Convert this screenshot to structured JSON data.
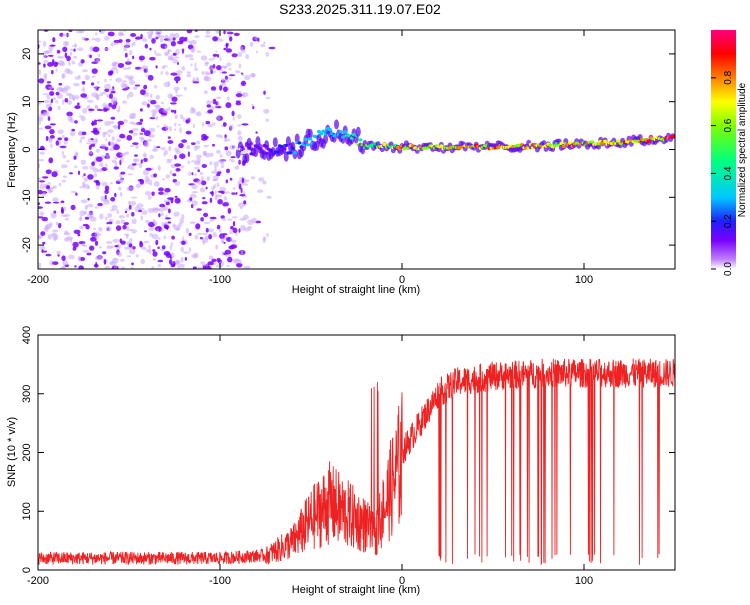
{
  "figure_title": "S233.2025.311.19.07.E02",
  "chart_data": [
    {
      "type": "heatmap",
      "name": "spectrogram",
      "xlabel": "Height of straight line (km)",
      "ylabel": "Frequency (Hz)",
      "xlim": [
        -200,
        150
      ],
      "ylim": [
        -25,
        25
      ],
      "x_ticks": [
        -200,
        -100,
        0,
        100
      ],
      "y_ticks": [
        -20,
        -10,
        0,
        10,
        20
      ],
      "colorbar": {
        "label": "Normalized spectral amplitude",
        "range": [
          0,
          1
        ],
        "ticks": [
          0.0,
          0.2,
          0.4,
          0.6,
          0.8
        ],
        "colormap": [
          "#e8e0f8",
          "#7a00ff",
          "#2020ff",
          "#00e0ff",
          "#00ff60",
          "#a0ff00",
          "#ffff00",
          "#ff8000",
          "#ff0000",
          "#ff0080"
        ]
      },
      "ridge": {
        "description_x": [
          -90,
          -60,
          -45,
          -35,
          -20,
          0,
          40,
          80,
          120,
          150
        ],
        "freq_hz": [
          0,
          0,
          3,
          4,
          1,
          0.5,
          0.5,
          0.8,
          1.5,
          2.5
        ],
        "amplitude": [
          0.1,
          0.3,
          0.35,
          0.4,
          0.7,
          0.8,
          0.85,
          0.8,
          0.85,
          0.95
        ]
      }
    },
    {
      "type": "line",
      "name": "snr",
      "xlabel": "Height of straight line (km)",
      "ylabel": "SNR (10 * v/v)",
      "xlim": [
        -200,
        150
      ],
      "ylim": [
        0,
        400
      ],
      "x_ticks": [
        -200,
        -100,
        0,
        100
      ],
      "y_ticks": [
        0,
        100,
        200,
        300,
        400
      ],
      "color": "#ee2222",
      "trend_x": [
        -200,
        -100,
        -75,
        -60,
        -50,
        -40,
        -30,
        -20,
        -15,
        -10,
        0,
        10,
        20,
        30,
        50,
        80,
        100,
        150
      ],
      "trend_y": [
        20,
        20,
        25,
        50,
        90,
        120,
        100,
        80,
        60,
        110,
        200,
        250,
        300,
        320,
        330,
        335,
        335,
        335
      ]
    }
  ]
}
